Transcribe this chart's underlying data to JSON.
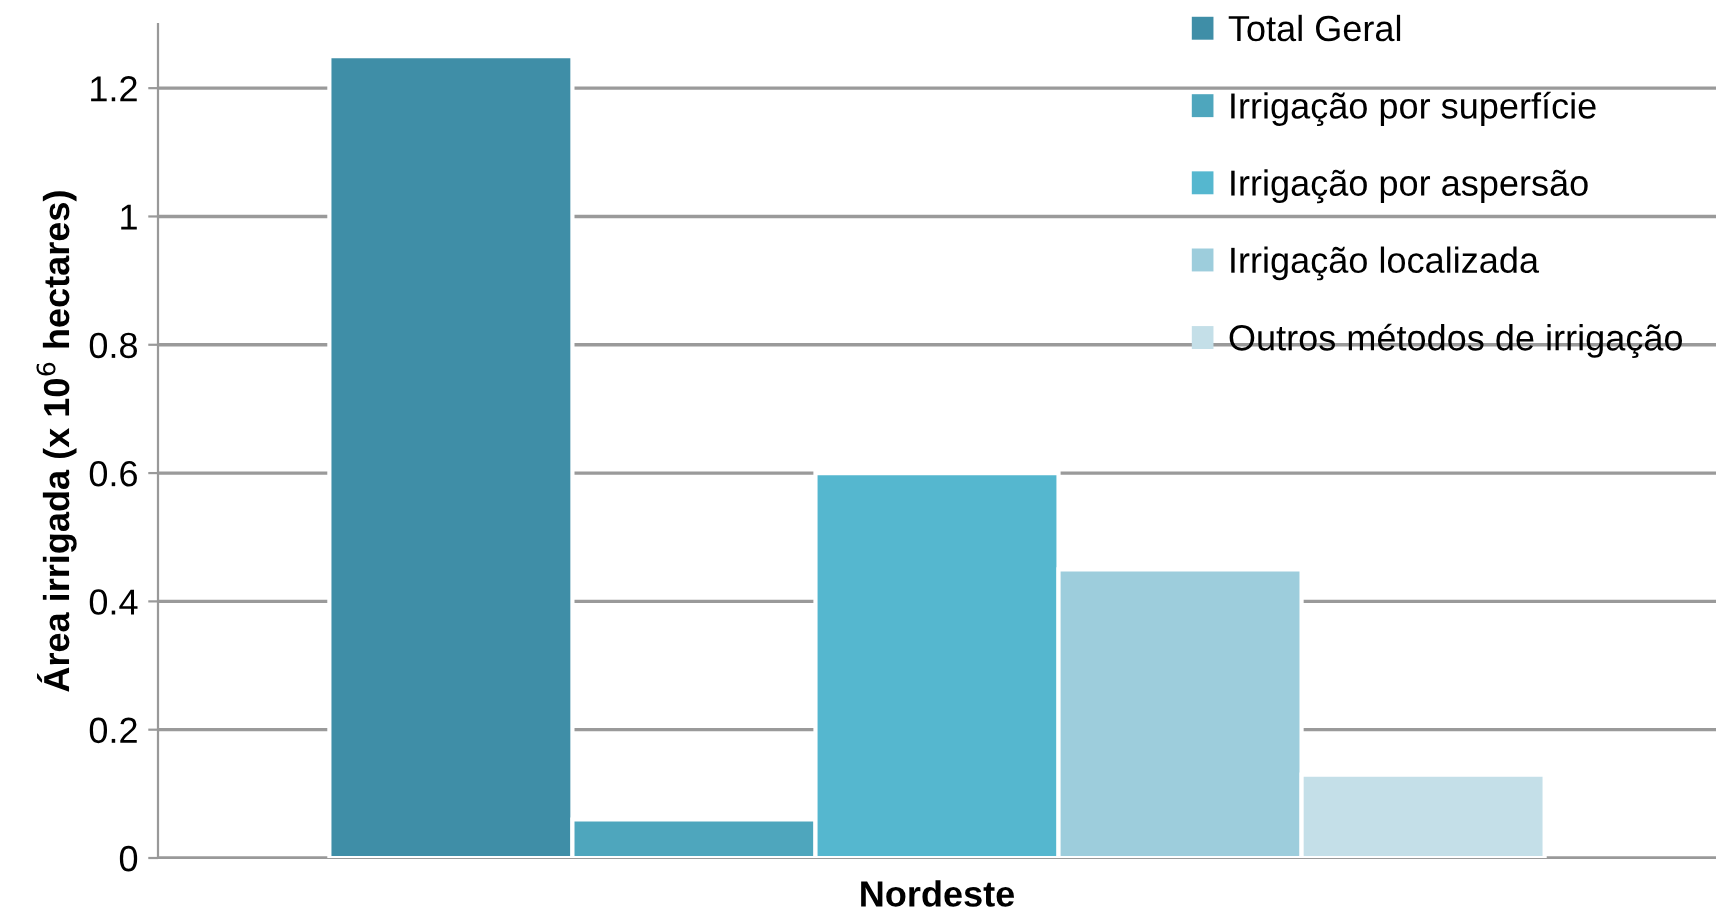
{
  "chart_data": {
    "type": "bar",
    "categories": [
      "Nordeste"
    ],
    "ylabel": "Área irrigada (x 10$^{6}$ hectares)",
    "ylim": [
      0,
      1.3
    ],
    "yticks": [
      0,
      0.2,
      0.4,
      0.6,
      0.8,
      1,
      1.2
    ],
    "grid": "y",
    "legend": "top right",
    "series": [
      {
        "name": "Total Geral",
        "color": "#3f8ea7",
        "values": [
          1.25
        ]
      },
      {
        "name": "Irrigação por superfície",
        "color": "#4ea6bd",
        "values": [
          0.06
        ]
      },
      {
        "name": "Irrigação por aspersão",
        "color": "#55b7cf",
        "values": [
          0.6
        ]
      },
      {
        "name": "Irrigação localizada",
        "color": "#9dcddc",
        "values": [
          0.45
        ]
      },
      {
        "name": "Outros métodos de irrigação",
        "color": "#c4dfe8",
        "values": [
          0.13
        ]
      }
    ]
  }
}
